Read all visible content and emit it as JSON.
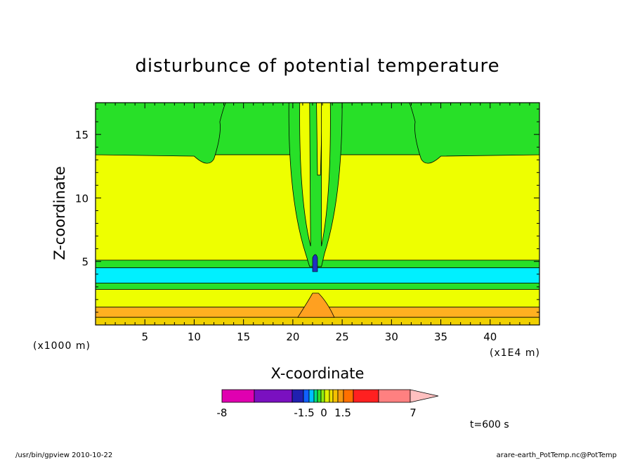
{
  "chart_data": {
    "type": "heatmap",
    "title": "disturbunce of potential temperature",
    "xlabel": "X-coordinate",
    "ylabel": "Z-coordinate",
    "x_unit_note": "(x1E4 m)",
    "y_unit_note": "(x1000 m)",
    "xlim": [
      0,
      45
    ],
    "ylim": [
      0,
      17.5
    ],
    "x_ticks": [
      5,
      10,
      15,
      20,
      25,
      30,
      35,
      40
    ],
    "y_ticks": [
      5,
      10,
      15
    ],
    "colorbar": {
      "colors": [
        "#e000b0",
        "#7a10c0",
        "#2020b0",
        "#1060ff",
        "#00c0ff",
        "#00e080",
        "#30e030",
        "#90ee10",
        "#e0f000",
        "#f0e000",
        "#f5c000",
        "#f59a10",
        "#ff7000",
        "#ff2020",
        "#ff8080",
        "#ffc0c0"
      ],
      "tick_labels": [
        "-8",
        "-1.5",
        "0",
        "1.5",
        "7"
      ],
      "tick_values": [
        -8,
        -1.5,
        0,
        1.5,
        7
      ]
    },
    "bands": [
      {
        "zmin": 13.4,
        "zmax": 17.5,
        "color": "#28e028"
      },
      {
        "zmin": 5.1,
        "zmax": 13.4,
        "color": "#eeff00"
      },
      {
        "zmin": 4.5,
        "zmax": 5.1,
        "color": "#28e028"
      },
      {
        "zmin": 3.3,
        "zmax": 4.5,
        "color": "#00f0ff"
      },
      {
        "zmin": 2.8,
        "zmax": 3.3,
        "color": "#28e028"
      },
      {
        "zmin": 1.4,
        "zmax": 2.8,
        "color": "#eeff00"
      },
      {
        "zmin": 0.6,
        "zmax": 1.4,
        "color": "#ffb020"
      },
      {
        "zmin": 0.0,
        "zmax": 0.6,
        "color": "#f0d000"
      }
    ],
    "time_label": "t=600 s"
  },
  "footer": {
    "left": "/usr/bin/gpview   2010-10-22",
    "right": "arare-earth_PotTemp.nc@PotTemp"
  }
}
